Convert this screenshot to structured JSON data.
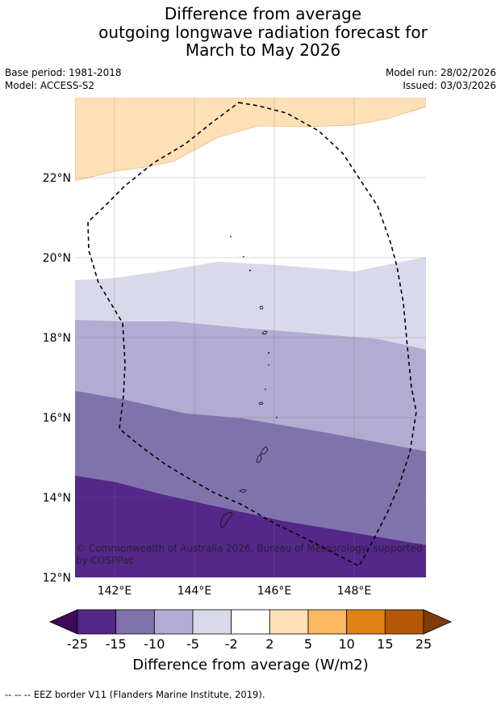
{
  "title": {
    "line1": "Difference from average",
    "line2": "outgoing longwave radiation forecast for",
    "line3": "March to May 2026"
  },
  "meta": {
    "base_period": "Base period: 1981-2018",
    "model": "Model: ACCESS-S2",
    "model_run": "Model run: 28/02/2026",
    "issued": "Issued: 03/03/2026"
  },
  "map": {
    "lat_labels": [
      "22°N",
      "20°N",
      "18°N",
      "16°N",
      "14°N",
      "12°N"
    ],
    "lon_labels": [
      "142°E",
      "144°E",
      "146°E",
      "148°E"
    ],
    "copyright": "© Commonwealth of Australia 2026, Bureau of Meteorology, supported by COSPPac",
    "colors": {
      "band_pos2_5": "#fee0b6",
      "band_neg2_5": "#d8daeb",
      "band_neg5_10": "#b2abd2",
      "band_neg10_15": "#8073ac",
      "band_neg15_25": "#542788"
    }
  },
  "colorbar": {
    "ticks": [
      "-25",
      "-15",
      "-10",
      "-5",
      "-2",
      "2",
      "5",
      "10",
      "15",
      "25"
    ],
    "colors": [
      "#3f0a56",
      "#542788",
      "#8073ac",
      "#b2abd2",
      "#d8daeb",
      "#ffffff",
      "#fee0b6",
      "#fdb863",
      "#e08214",
      "#b35806",
      "#7f3b08"
    ],
    "label": "Difference from average (W/m2)"
  },
  "footer": {
    "legend_line": "--  --  --",
    "legend_text": "EEZ border V11 (Flanders Marine Institute, 2019)."
  }
}
